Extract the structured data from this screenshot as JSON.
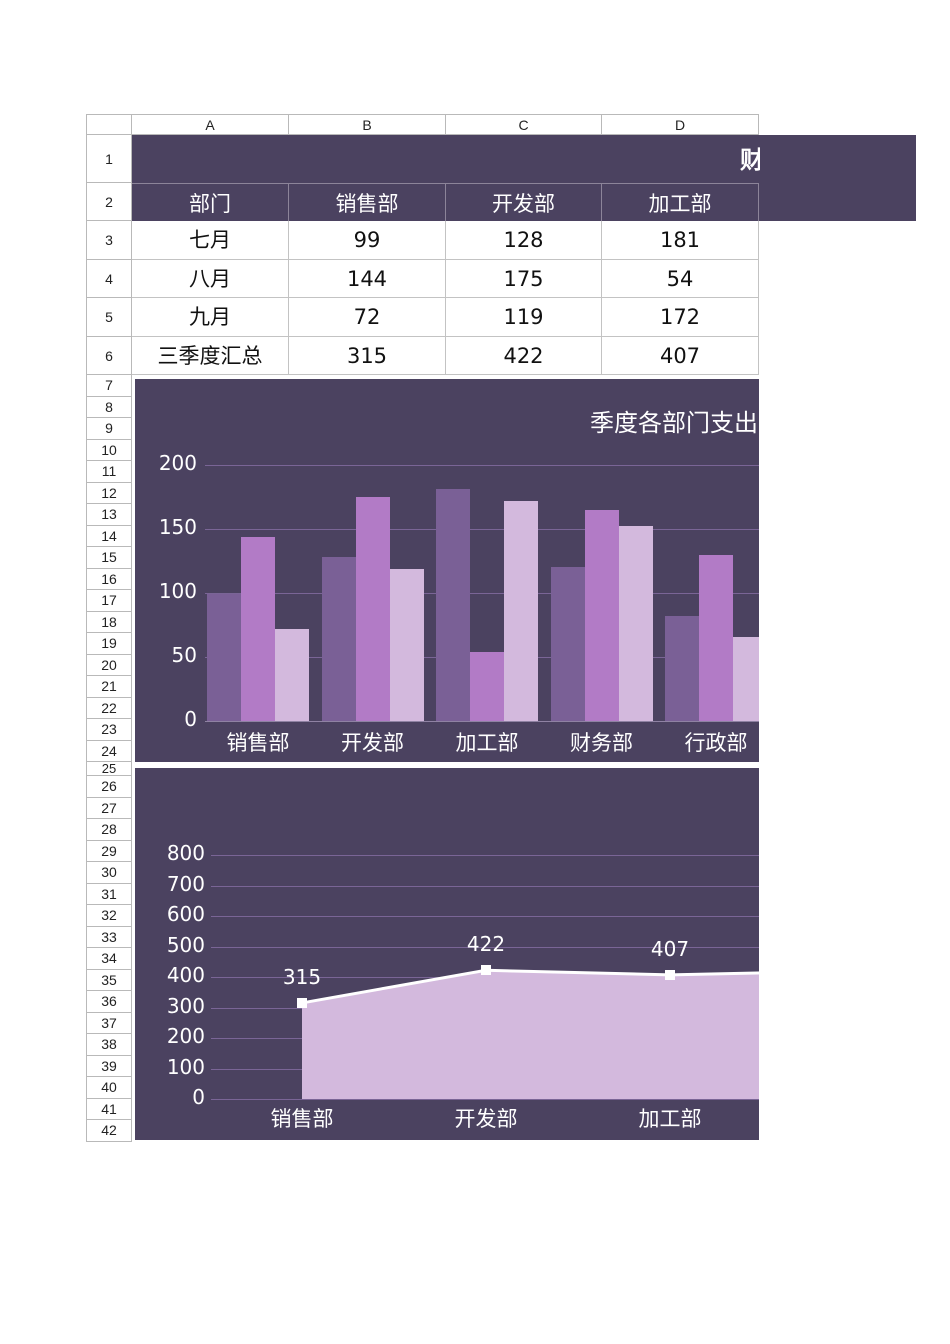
{
  "spreadsheet": {
    "columns": [
      "A",
      "B",
      "C",
      "D"
    ],
    "rows": [
      "1",
      "2",
      "3",
      "4",
      "5",
      "6",
      "7",
      "8",
      "9",
      "10",
      "11",
      "12",
      "13",
      "14",
      "15",
      "16",
      "17",
      "18",
      "19",
      "20",
      "21",
      "22",
      "23",
      "24",
      "25",
      "26",
      "27",
      "28",
      "29",
      "30",
      "31",
      "32",
      "33",
      "34",
      "35",
      "36",
      "37",
      "38",
      "39",
      "40",
      "41",
      "42"
    ],
    "title_visible": "财",
    "header": [
      "部门",
      "销售部",
      "开发部",
      "加工部"
    ],
    "data_rows": [
      [
        "七月",
        "99",
        "128",
        "181"
      ],
      [
        "八月",
        "144",
        "175",
        "54"
      ],
      [
        "九月",
        "72",
        "119",
        "172"
      ],
      [
        "三季度汇总",
        "315",
        "422",
        "407"
      ]
    ]
  },
  "colors": {
    "band": "#4b4260",
    "series_july": "#7a6096",
    "series_aug": "#b27bc6",
    "series_sep": "#d3b9dd",
    "area_fill": "#d3b9dd",
    "gridline": "#7a6596"
  },
  "chart_data": [
    {
      "type": "bar",
      "title": "季度各部门支出",
      "categories": [
        "销售部",
        "开发部",
        "加工部",
        "财务部",
        "行政部"
      ],
      "series": [
        {
          "name": "七月",
          "values": [
            99,
            128,
            181,
            120,
            82
          ]
        },
        {
          "name": "八月",
          "values": [
            144,
            175,
            54,
            165,
            130
          ]
        },
        {
          "name": "九月",
          "values": [
            72,
            119,
            172,
            152,
            66
          ]
        }
      ],
      "yticks": [
        "0",
        "50",
        "100",
        "150",
        "200"
      ],
      "ylim": [
        0,
        200
      ],
      "grid": true,
      "xlabel": "",
      "ylabel": ""
    },
    {
      "type": "area",
      "title": "",
      "categories": [
        "销售部",
        "开发部",
        "加工部"
      ],
      "values": [
        315,
        422,
        407
      ],
      "data_labels": [
        "315",
        "422",
        "407"
      ],
      "yticks": [
        "0",
        "100",
        "200",
        "300",
        "400",
        "500",
        "600",
        "700",
        "800"
      ],
      "ylim": [
        0,
        800
      ],
      "grid": true,
      "xlabel": "",
      "ylabel": ""
    }
  ]
}
